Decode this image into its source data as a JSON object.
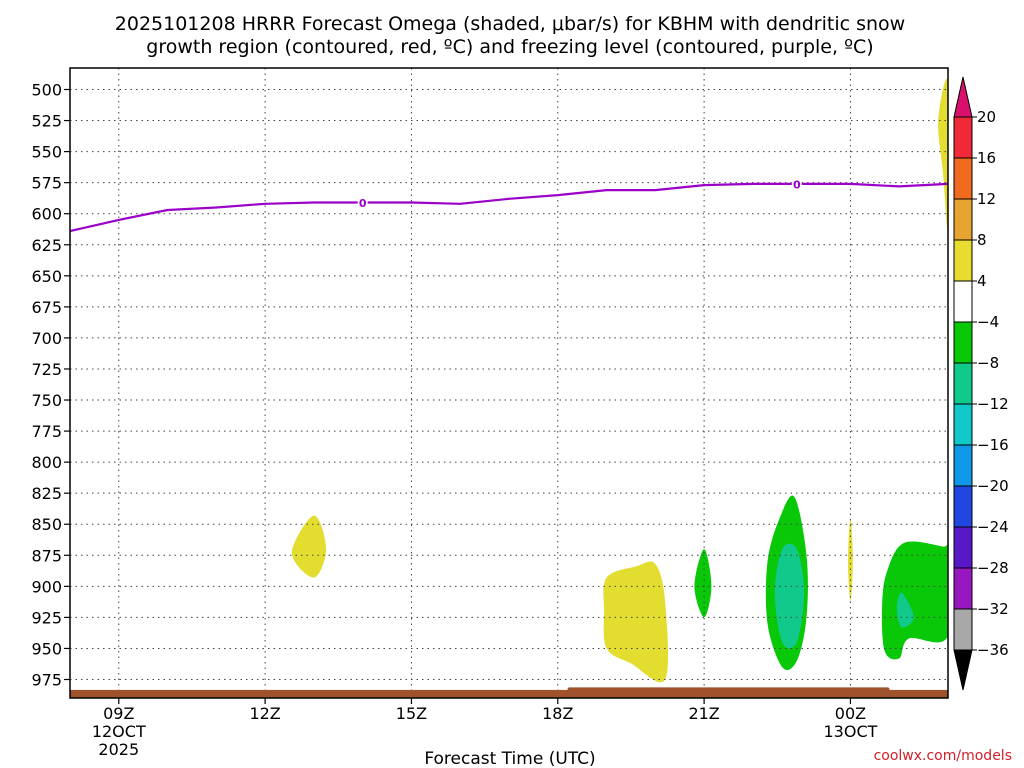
{
  "chart_data": {
    "type": "heatmap",
    "title_lines": [
      "2025101208 HRRR Forecast Omega (shaded, μbar/s) for KBHM with dendritic snow",
      "growth region (contoured, red, ºC) and freezing level (contoured, purple, ºC)"
    ],
    "xlabel": "Forecast Time (UTC)",
    "credit": "coolwx.com/models",
    "x_range_hours": [
      8,
      26
    ],
    "y_range_mb": [
      490,
      990
    ],
    "y_scale": "pressure (increasing downward)",
    "grid": true,
    "x_ticks": [
      {
        "hour": 9,
        "label": "09Z",
        "date": "12OCT",
        "year": "2025"
      },
      {
        "hour": 12,
        "label": "12Z"
      },
      {
        "hour": 15,
        "label": "15Z"
      },
      {
        "hour": 18,
        "label": "18Z"
      },
      {
        "hour": 21,
        "label": "21Z"
      },
      {
        "hour": 24,
        "label": "00Z",
        "date": "13OCT"
      }
    ],
    "y_ticks": [
      500,
      525,
      550,
      575,
      600,
      625,
      650,
      675,
      700,
      725,
      750,
      775,
      800,
      825,
      850,
      875,
      900,
      925,
      950,
      975
    ],
    "freezing_level": {
      "label": "0",
      "label_points": [
        {
          "hour": 14,
          "mb": 591
        },
        {
          "hour": 22.9,
          "mb": 576
        }
      ],
      "points": [
        {
          "hour": 8,
          "mb": 614
        },
        {
          "hour": 9,
          "mb": 605
        },
        {
          "hour": 10,
          "mb": 597
        },
        {
          "hour": 11,
          "mb": 595
        },
        {
          "hour": 12,
          "mb": 592
        },
        {
          "hour": 13,
          "mb": 591
        },
        {
          "hour": 14,
          "mb": 591
        },
        {
          "hour": 15,
          "mb": 591
        },
        {
          "hour": 16,
          "mb": 592
        },
        {
          "hour": 17,
          "mb": 588
        },
        {
          "hour": 18,
          "mb": 585
        },
        {
          "hour": 19,
          "mb": 581
        },
        {
          "hour": 20,
          "mb": 581
        },
        {
          "hour": 21,
          "mb": 577
        },
        {
          "hour": 22,
          "mb": 576
        },
        {
          "hour": 23,
          "mb": 576
        },
        {
          "hour": 24,
          "mb": 576
        },
        {
          "hour": 25,
          "mb": 578
        },
        {
          "hour": 26,
          "mb": 576
        }
      ]
    },
    "omega_regions": [
      {
        "range": "4 to 8",
        "color": "#e3dd30",
        "points": [
          {
            "hour": 13.0,
            "mb": 843
          },
          {
            "hour": 13.25,
            "mb": 870
          },
          {
            "hour": 13.0,
            "mb": 893
          },
          {
            "hour": 12.55,
            "mb": 873
          }
        ]
      },
      {
        "range": "4 to 8",
        "color": "#e3dd30",
        "points": [
          {
            "hour": 19.0,
            "mb": 893
          },
          {
            "hour": 19.6,
            "mb": 884
          },
          {
            "hour": 20.0,
            "mb": 882
          },
          {
            "hour": 20.2,
            "mb": 912
          },
          {
            "hour": 20.2,
            "mb": 975
          },
          {
            "hour": 19.5,
            "mb": 962
          },
          {
            "hour": 19.0,
            "mb": 950
          },
          {
            "hour": 18.95,
            "mb": 920
          }
        ]
      },
      {
        "range": "-8 to -4",
        "color": "#08c808",
        "points": [
          {
            "hour": 21.0,
            "mb": 870
          },
          {
            "hour": 21.15,
            "mb": 900
          },
          {
            "hour": 21.0,
            "mb": 925
          },
          {
            "hour": 20.8,
            "mb": 900
          }
        ]
      },
      {
        "range": "-8 to -4",
        "color": "#08c808",
        "points": [
          {
            "hour": 22.85,
            "mb": 828
          },
          {
            "hour": 23.1,
            "mb": 875
          },
          {
            "hour": 23.1,
            "mb": 925
          },
          {
            "hour": 22.9,
            "mb": 960
          },
          {
            "hour": 22.6,
            "mb": 965
          },
          {
            "hour": 22.3,
            "mb": 930
          },
          {
            "hour": 22.3,
            "mb": 880
          },
          {
            "hour": 22.55,
            "mb": 845
          }
        ]
      },
      {
        "range": "-12 to -8",
        "color": "#10c98a",
        "points": [
          {
            "hour": 22.9,
            "mb": 870
          },
          {
            "hour": 23.05,
            "mb": 905
          },
          {
            "hour": 22.9,
            "mb": 945
          },
          {
            "hour": 22.6,
            "mb": 945
          },
          {
            "hour": 22.45,
            "mb": 905
          },
          {
            "hour": 22.6,
            "mb": 870
          }
        ]
      },
      {
        "range": "4 to 8",
        "color": "#e3dd30",
        "points": [
          {
            "hour": 24.0,
            "mb": 845
          },
          {
            "hour": 24.05,
            "mb": 880
          },
          {
            "hour": 24.0,
            "mb": 912
          },
          {
            "hour": 23.95,
            "mb": 880
          }
        ]
      },
      {
        "range": "-8 to -4",
        "color": "#08c808",
        "points": [
          {
            "hour": 25.1,
            "mb": 865
          },
          {
            "hour": 25.9,
            "mb": 868
          },
          {
            "hour": 26.0,
            "mb": 870
          },
          {
            "hour": 26.0,
            "mb": 940
          },
          {
            "hour": 25.2,
            "mb": 942
          },
          {
            "hour": 25.0,
            "mb": 958
          },
          {
            "hour": 24.7,
            "mb": 952
          },
          {
            "hour": 24.65,
            "mb": 915
          },
          {
            "hour": 24.75,
            "mb": 888
          }
        ]
      },
      {
        "range": "-12 to -8",
        "color": "#10c98a",
        "points": [
          {
            "hour": 25.05,
            "mb": 905
          },
          {
            "hour": 25.3,
            "mb": 925
          },
          {
            "hour": 25.05,
            "mb": 933
          },
          {
            "hour": 24.95,
            "mb": 918
          }
        ]
      },
      {
        "range": "4 to 8",
        "color": "#e3dd30",
        "points": [
          {
            "hour": 26.0,
            "mb": 495
          },
          {
            "hour": 26.0,
            "mb": 610
          },
          {
            "hour": 25.9,
            "mb": 568
          },
          {
            "hour": 25.8,
            "mb": 525
          }
        ]
      }
    ],
    "surface_band": {
      "color": "#a0522d",
      "main_mb": 985,
      "raised_segment": {
        "start_hour": 18.2,
        "end_hour": 24.8,
        "mb": 983
      }
    },
    "colorbar": {
      "levels": [
        "20",
        "16",
        "12",
        "8",
        "4",
        "-4",
        "-8",
        "-12",
        "-16",
        "-20",
        "-24",
        "-28",
        "-32",
        "-36"
      ],
      "colors": [
        "#d8106c",
        "#f02838",
        "#f06a20",
        "#e6a430",
        "#e8dc30",
        "#ffffff",
        "#08c808",
        "#10c98a",
        "#10c8c8",
        "#1098e8",
        "#2048e0",
        "#5818c8",
        "#9818c0",
        "#a8a8a8",
        "#000000"
      ]
    }
  }
}
